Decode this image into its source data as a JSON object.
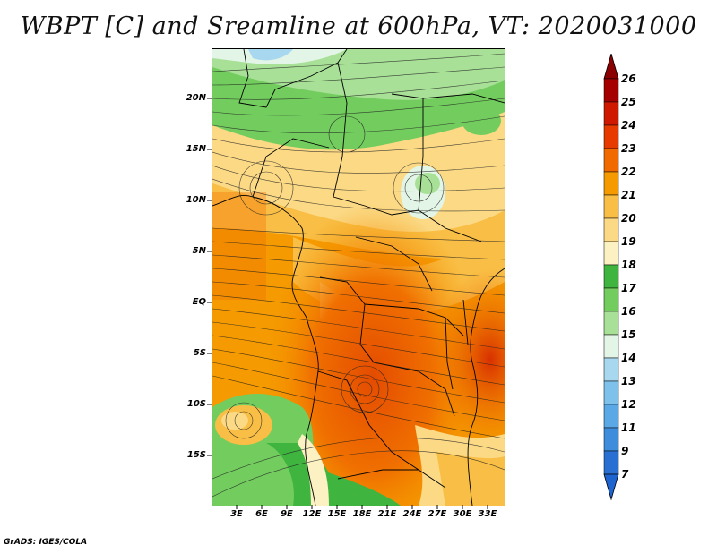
{
  "title": "WBPT [C] and Sreamline at 600hPa, VT: 2020031000",
  "credit": "GrADS: IGES/COLA",
  "map": {
    "lat_labels": [
      "20N",
      "15N",
      "10N",
      "5N",
      "EQ",
      "5S",
      "10S",
      "15S"
    ],
    "lon_labels": [
      "3E",
      "6E",
      "9E",
      "12E",
      "15E",
      "18E",
      "21E",
      "24E",
      "27E",
      "30E",
      "33E"
    ]
  },
  "colorbar": {
    "labels": [
      "26",
      "25",
      "24",
      "23",
      "22",
      "21",
      "20",
      "19",
      "18",
      "17",
      "16",
      "15",
      "14",
      "13",
      "12",
      "11",
      "9",
      "7"
    ],
    "colors": [
      "#a50000",
      "#cf1800",
      "#e63a00",
      "#f06a00",
      "#f59a00",
      "#f9be45",
      "#fbd985",
      "#fbf1c2",
      "#3fb43f",
      "#72cc5e",
      "#a7e096",
      "#e2f5e6",
      "#a8d8ef",
      "#7ec2ec",
      "#5aa8e5",
      "#3d8ddc",
      "#2a70d2"
    ],
    "top_color": "#8b0000",
    "bottom_color": "#1e64d0"
  }
}
